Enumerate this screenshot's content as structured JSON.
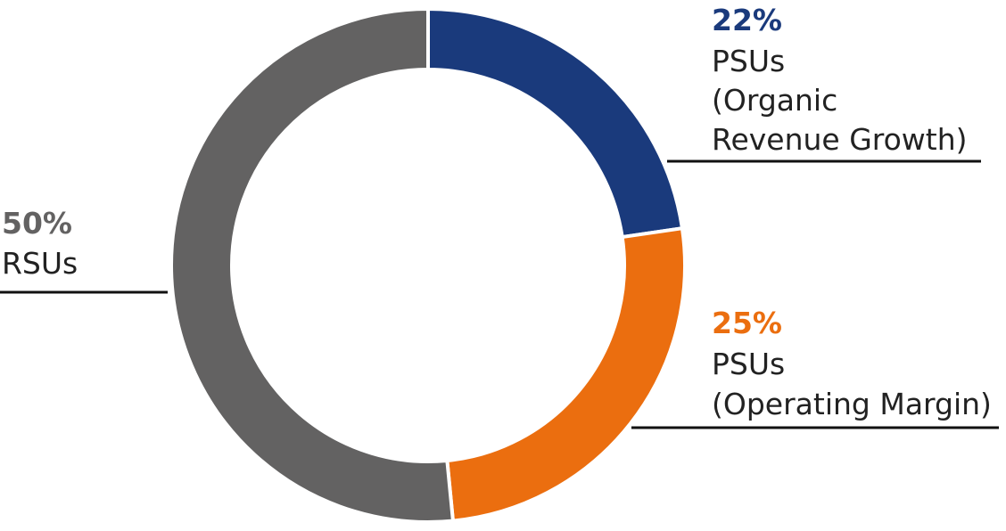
{
  "chart_data": {
    "type": "pie",
    "donut": true,
    "slices": [
      {
        "value": 22,
        "pct_label": "22%",
        "label_lines": [
          "PSUs",
          "(Organic",
          "Revenue Growth)"
        ],
        "color": "#1a3a7c"
      },
      {
        "value": 25,
        "pct_label": "25%",
        "label_lines": [
          "PSUs",
          "(Operating Margin)"
        ],
        "color": "#eb6e0f"
      },
      {
        "value": 50,
        "pct_label": "50%",
        "label_lines": [
          "RSUs"
        ],
        "color": "#636262"
      }
    ],
    "label_color": "#222222"
  }
}
